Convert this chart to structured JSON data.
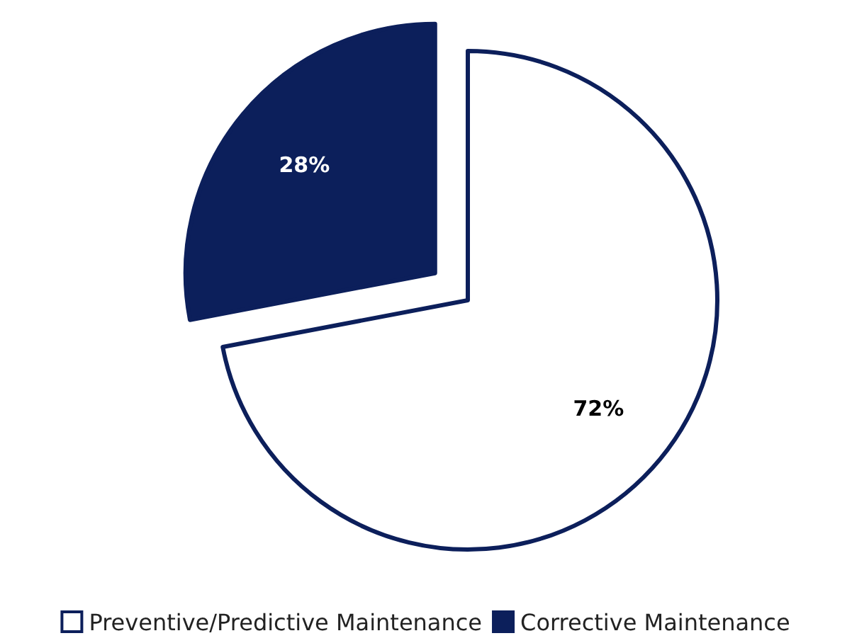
{
  "chart_data": {
    "type": "pie",
    "categories": [
      "Preventive/Predictive Maintenance",
      "Corrective Maintenance"
    ],
    "values": [
      72,
      28
    ],
    "colors": [
      "#ffffff",
      "#0c1f5b"
    ],
    "value_labels": [
      "72%",
      "28%"
    ],
    "legend": "bottom"
  }
}
